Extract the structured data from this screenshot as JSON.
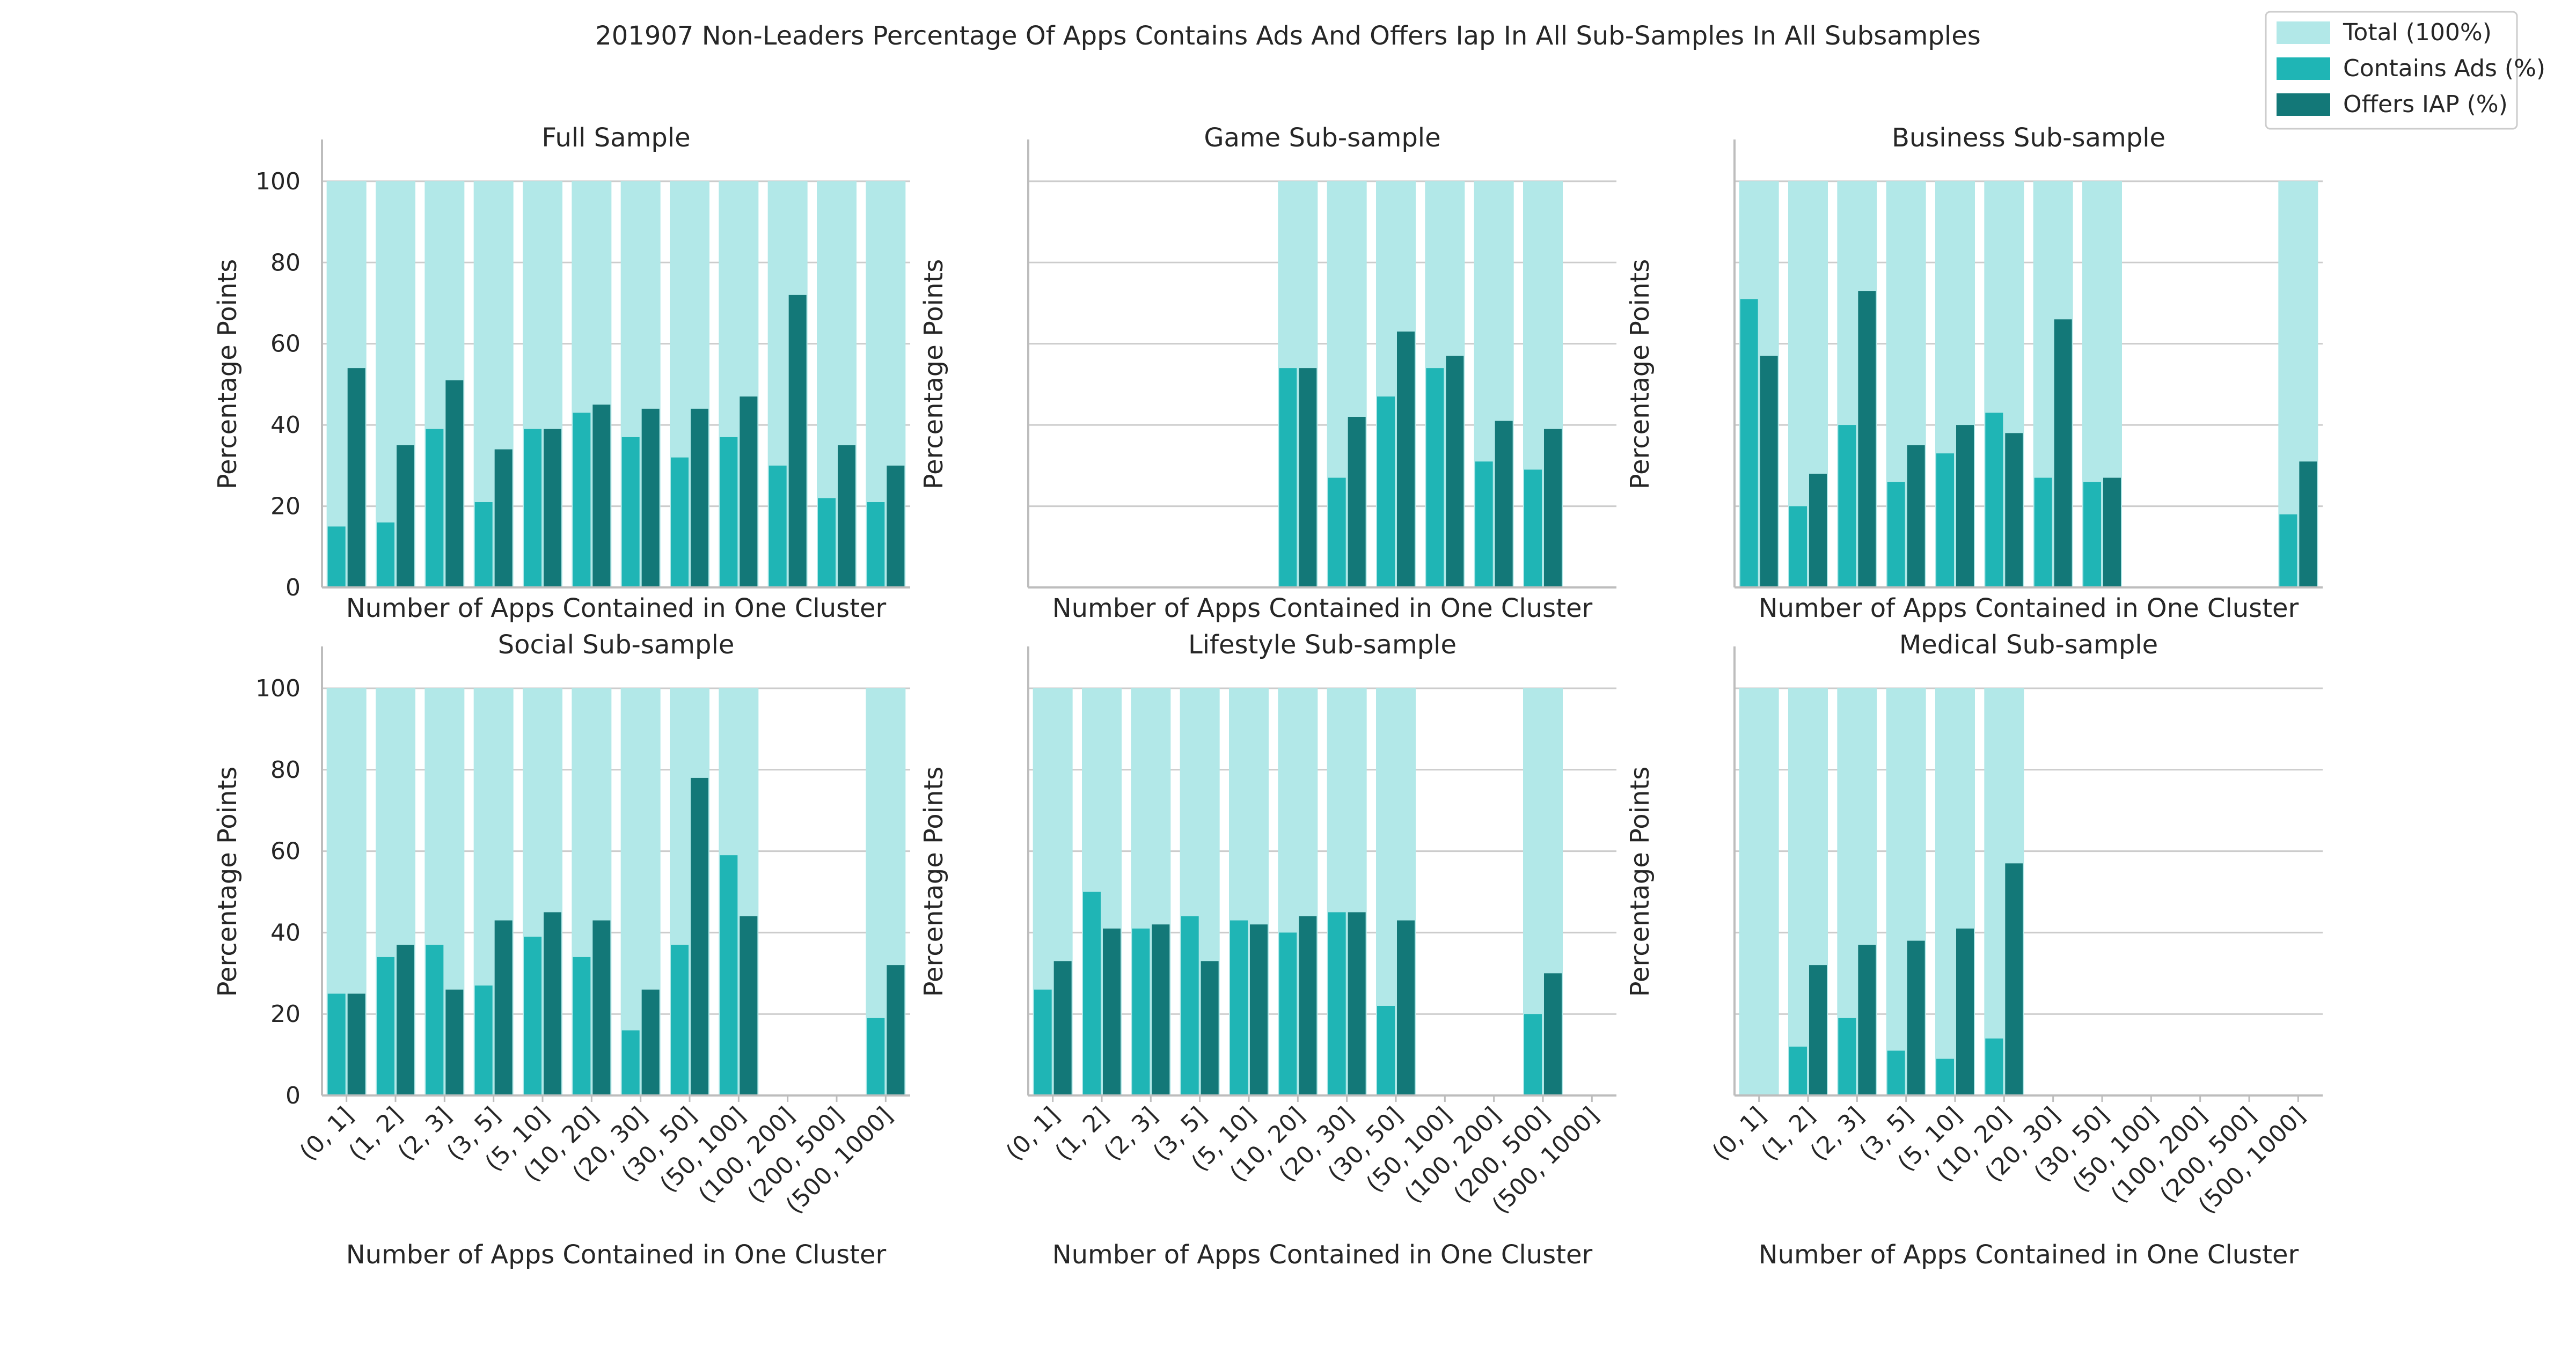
{
  "chart_data": {
    "type": "bar",
    "title": "201907 Non-Leaders Percentage Of Apps Contains Ads And Offers Iap In All Sub-Samples In All Subsamples",
    "categories": [
      "(0, 1]",
      "(1, 2]",
      "(2, 3]",
      "(3, 5]",
      "(5, 10]",
      "(10, 20]",
      "(20, 30]",
      "(30, 50]",
      "(50, 100]",
      "(100, 200]",
      "(200, 500]",
      "(500, 1000]"
    ],
    "xlabel": "Number of Apps Contained in One Cluster",
    "ylabel": "Percentage Points",
    "ylim": [
      0,
      105
    ],
    "yticks": [
      0,
      20,
      40,
      60,
      80,
      100
    ],
    "grid": true,
    "legend": {
      "position": "top-right",
      "entries": [
        {
          "name": "Total (100%)",
          "color": "#b2e8e8"
        },
        {
          "name": "Contains Ads (%)",
          "color": "#1fb5b5"
        },
        {
          "name": "Offers IAP (%)",
          "color": "#137878"
        }
      ]
    },
    "colors": {
      "total": "#b2e8e8",
      "ads": "#1fb5b5",
      "iap": "#137878"
    },
    "panels": [
      {
        "title": "Full Sample",
        "total": [
          100,
          100,
          100,
          100,
          100,
          100,
          100,
          100,
          100,
          100,
          100,
          100
        ],
        "ads": [
          15,
          16,
          39,
          21,
          39,
          43,
          37,
          32,
          37,
          30,
          22,
          21
        ],
        "iap": [
          54,
          35,
          51,
          34,
          39,
          45,
          44,
          44,
          47,
          72,
          35,
          30
        ]
      },
      {
        "title": "Game Sub-sample",
        "total": [
          null,
          null,
          null,
          null,
          null,
          100,
          100,
          100,
          100,
          100,
          100,
          null
        ],
        "ads": [
          null,
          null,
          null,
          null,
          null,
          54,
          27,
          47,
          54,
          31,
          29,
          null
        ],
        "iap": [
          null,
          null,
          null,
          null,
          null,
          54,
          42,
          63,
          57,
          41,
          39,
          null
        ]
      },
      {
        "title": "Business Sub-sample",
        "total": [
          100,
          100,
          100,
          100,
          100,
          100,
          100,
          100,
          null,
          null,
          null,
          100
        ],
        "ads": [
          71,
          20,
          40,
          26,
          33,
          43,
          27,
          26,
          null,
          null,
          null,
          18
        ],
        "iap": [
          57,
          28,
          73,
          35,
          40,
          38,
          66,
          27,
          null,
          null,
          null,
          31
        ]
      },
      {
        "title": "Social Sub-sample",
        "total": [
          100,
          100,
          100,
          100,
          100,
          100,
          100,
          100,
          100,
          null,
          null,
          100
        ],
        "ads": [
          25,
          34,
          37,
          27,
          39,
          34,
          16,
          37,
          59,
          null,
          null,
          19
        ],
        "iap": [
          25,
          37,
          26,
          43,
          45,
          43,
          26,
          78,
          44,
          null,
          null,
          32
        ]
      },
      {
        "title": "Lifestyle Sub-sample",
        "total": [
          100,
          100,
          100,
          100,
          100,
          100,
          100,
          100,
          null,
          null,
          100,
          null
        ],
        "ads": [
          26,
          50,
          41,
          44,
          43,
          40,
          45,
          22,
          null,
          null,
          20,
          null
        ],
        "iap": [
          33,
          41,
          42,
          33,
          42,
          44,
          45,
          43,
          null,
          null,
          30,
          null
        ]
      },
      {
        "title": "Medical Sub-sample",
        "total": [
          100,
          100,
          100,
          100,
          100,
          100,
          null,
          null,
          null,
          null,
          null,
          null
        ],
        "ads": [
          0,
          12,
          19,
          11,
          9,
          14,
          null,
          null,
          null,
          null,
          null,
          null
        ],
        "iap": [
          0,
          32,
          37,
          38,
          41,
          57,
          null,
          null,
          null,
          null,
          null,
          null
        ]
      }
    ]
  }
}
